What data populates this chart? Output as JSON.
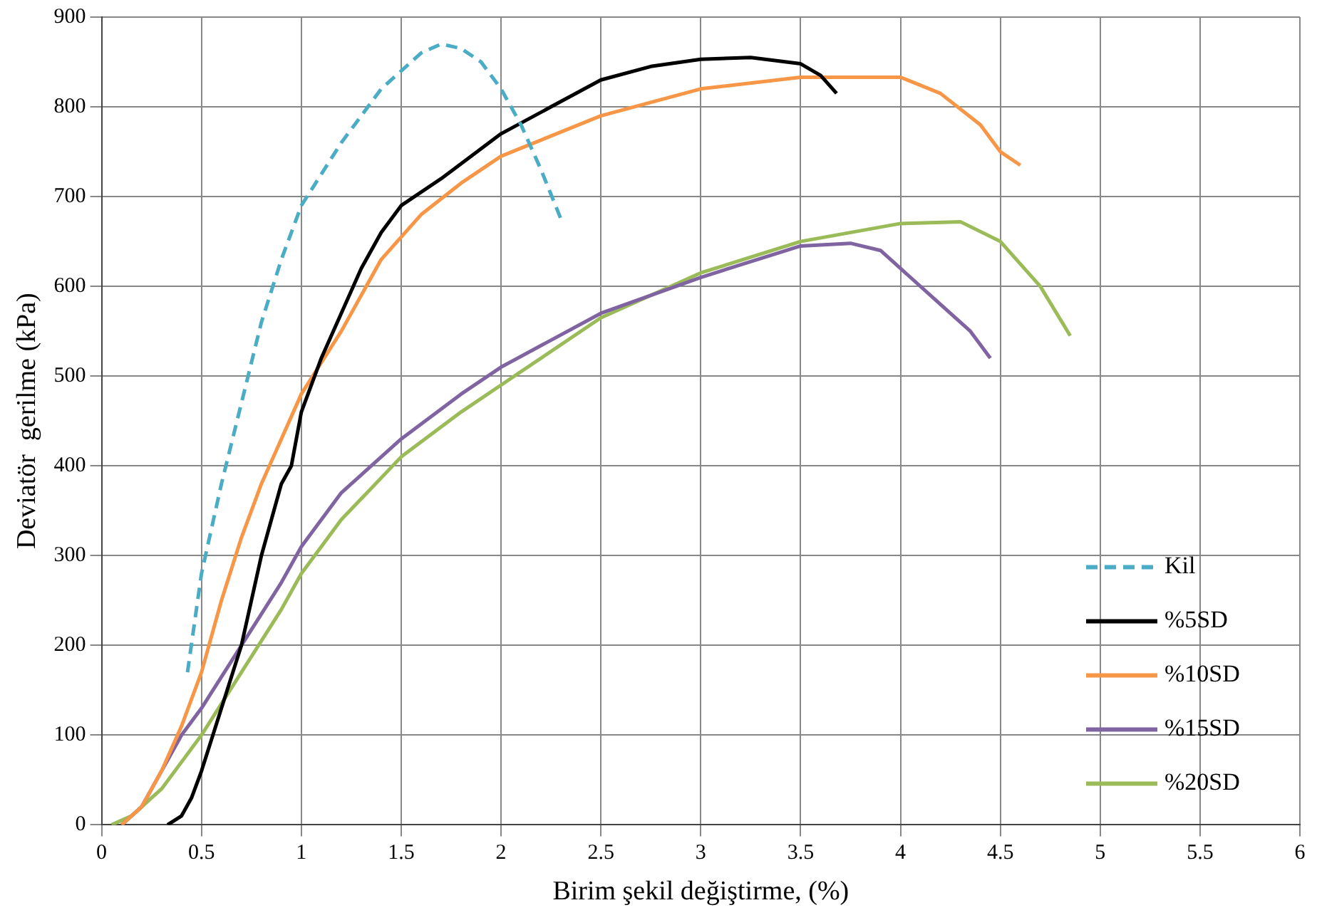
{
  "chart_data": {
    "type": "line",
    "xlabel": "Birim şekil değiştirme, (%)",
    "ylabel": "Deviatör  gerilme (kPa)",
    "xlim": [
      0,
      6
    ],
    "xticks": [
      0,
      0.5,
      1,
      1.5,
      2,
      2.5,
      3,
      3.5,
      4,
      4.5,
      5,
      5.5,
      6
    ],
    "ylim": [
      0,
      900
    ],
    "yticks": [
      0,
      100,
      200,
      300,
      400,
      500,
      600,
      700,
      800,
      900
    ],
    "grid": true,
    "legend": "bottom right",
    "marker": "none",
    "series": [
      {
        "name": "Kil",
        "color": "#4bacc6",
        "line_style": "dashed",
        "x": [
          0.43,
          0.5,
          0.6,
          0.7,
          0.8,
          0.9,
          1.0,
          1.2,
          1.4,
          1.6,
          1.7,
          1.8,
          1.9,
          2.0,
          2.1,
          2.2,
          2.3
        ],
        "values": [
          170,
          280,
          380,
          470,
          560,
          630,
          690,
          760,
          820,
          860,
          870,
          865,
          850,
          820,
          780,
          730,
          675
        ]
      },
      {
        "name": "%5SD",
        "color": "#000000",
        "line_style": "solid",
        "x": [
          0.33,
          0.4,
          0.45,
          0.5,
          0.6,
          0.7,
          0.8,
          0.9,
          0.95,
          1.0,
          1.1,
          1.2,
          1.3,
          1.4,
          1.5,
          1.7,
          2.0,
          2.25,
          2.5,
          2.75,
          3.0,
          3.25,
          3.5,
          3.6,
          3.68
        ],
        "values": [
          0,
          10,
          30,
          60,
          130,
          200,
          300,
          380,
          400,
          460,
          520,
          570,
          620,
          660,
          690,
          720,
          770,
          800,
          830,
          845,
          853,
          855,
          848,
          835,
          815
        ]
      },
      {
        "name": "%10SD",
        "color": "#f79646",
        "line_style": "solid",
        "x": [
          0.1,
          0.2,
          0.3,
          0.4,
          0.5,
          0.6,
          0.7,
          0.8,
          0.9,
          1.0,
          1.2,
          1.4,
          1.6,
          1.8,
          2.0,
          2.5,
          3.0,
          3.5,
          4.0,
          4.2,
          4.4,
          4.5,
          4.6
        ],
        "values": [
          0,
          20,
          60,
          110,
          170,
          250,
          320,
          380,
          430,
          480,
          550,
          630,
          680,
          715,
          745,
          790,
          820,
          833,
          833,
          815,
          780,
          750,
          735
        ]
      },
      {
        "name": "%15SD",
        "color": "#8064a2",
        "line_style": "solid",
        "x": [
          0.1,
          0.2,
          0.3,
          0.4,
          0.5,
          0.7,
          0.9,
          1.0,
          1.2,
          1.5,
          1.8,
          2.0,
          2.5,
          3.0,
          3.5,
          3.75,
          3.9,
          4.0,
          4.2,
          4.35,
          4.45
        ],
        "values": [
          0,
          20,
          60,
          100,
          130,
          200,
          270,
          310,
          370,
          430,
          480,
          510,
          570,
          610,
          645,
          648,
          640,
          620,
          580,
          550,
          520
        ]
      },
      {
        "name": "%20SD",
        "color": "#9bbb59",
        "line_style": "solid",
        "x": [
          0.05,
          0.15,
          0.3,
          0.5,
          0.7,
          0.9,
          1.0,
          1.2,
          1.5,
          1.8,
          2.0,
          2.5,
          3.0,
          3.5,
          4.0,
          4.3,
          4.5,
          4.7,
          4.85
        ],
        "values": [
          0,
          10,
          40,
          100,
          170,
          240,
          280,
          340,
          410,
          460,
          490,
          565,
          615,
          650,
          670,
          672,
          650,
          600,
          545
        ]
      }
    ]
  }
}
